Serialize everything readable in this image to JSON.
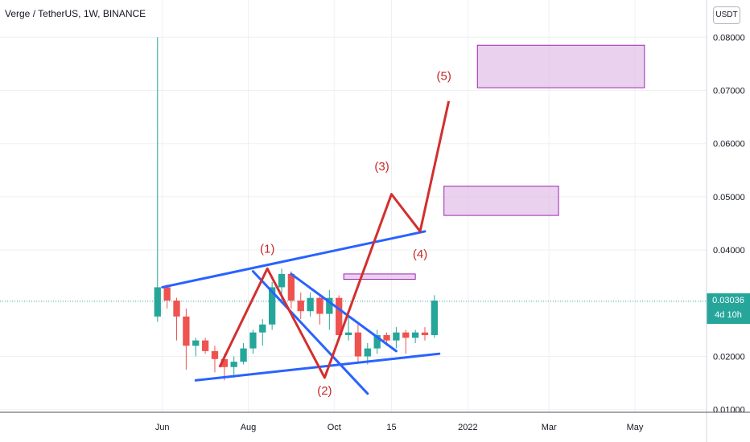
{
  "header": {
    "title": "Verge / TetherUS, 1W, BINANCE"
  },
  "price_axis": {
    "currency": "USDT"
  },
  "last_price": {
    "value": "0.03036",
    "countdown": "4d 10h"
  },
  "colors": {
    "up": "#26a69a",
    "down": "#ef5350",
    "trend": "#2962ff",
    "wave": "#d32f2f",
    "zone_fill": "#e1bee7",
    "zone_border": "#9c27b0"
  },
  "chart_data": {
    "type": "candlestick",
    "title": "Verge / TetherUS, 1W, BINANCE",
    "y_ticks": [
      "0.08000",
      "0.07000",
      "0.06000",
      "0.05000",
      "0.04000",
      "0.02000",
      "0.01000"
    ],
    "x_ticks": [
      {
        "label": "Jun",
        "week": 0.5
      },
      {
        "label": "Aug",
        "week": 9.5
      },
      {
        "label": "Oct",
        "week": 18.5
      },
      {
        "label": "15",
        "week": 24.5
      },
      {
        "label": "2022",
        "week": 32.5
      },
      {
        "label": "Mar",
        "week": 41
      },
      {
        "label": "May",
        "week": 50
      }
    ],
    "ylim": [
      0.0095,
      0.087
    ],
    "xlim": [
      -16.5,
      57.5
    ],
    "grid": true,
    "candles": [
      {
        "o": 0.0275,
        "h": 0.08,
        "l": 0.0265,
        "c": 0.033
      },
      {
        "o": 0.033,
        "h": 0.0335,
        "l": 0.029,
        "c": 0.0305
      },
      {
        "o": 0.0305,
        "h": 0.031,
        "l": 0.023,
        "c": 0.0275
      },
      {
        "o": 0.0275,
        "h": 0.029,
        "l": 0.0175,
        "c": 0.022
      },
      {
        "o": 0.022,
        "h": 0.0235,
        "l": 0.02,
        "c": 0.023
      },
      {
        "o": 0.023,
        "h": 0.0235,
        "l": 0.0205,
        "c": 0.021
      },
      {
        "o": 0.021,
        "h": 0.022,
        "l": 0.017,
        "c": 0.0195
      },
      {
        "o": 0.0195,
        "h": 0.0205,
        "l": 0.0155,
        "c": 0.018
      },
      {
        "o": 0.018,
        "h": 0.02,
        "l": 0.016,
        "c": 0.019
      },
      {
        "o": 0.019,
        "h": 0.0225,
        "l": 0.0185,
        "c": 0.0215
      },
      {
        "o": 0.0215,
        "h": 0.025,
        "l": 0.0205,
        "c": 0.0245
      },
      {
        "o": 0.0245,
        "h": 0.027,
        "l": 0.022,
        "c": 0.026
      },
      {
        "o": 0.026,
        "h": 0.034,
        "l": 0.025,
        "c": 0.033
      },
      {
        "o": 0.033,
        "h": 0.0365,
        "l": 0.03,
        "c": 0.0355
      },
      {
        "o": 0.0355,
        "h": 0.036,
        "l": 0.029,
        "c": 0.0305
      },
      {
        "o": 0.0305,
        "h": 0.032,
        "l": 0.027,
        "c": 0.0285
      },
      {
        "o": 0.0285,
        "h": 0.032,
        "l": 0.0275,
        "c": 0.031
      },
      {
        "o": 0.031,
        "h": 0.0315,
        "l": 0.026,
        "c": 0.028
      },
      {
        "o": 0.028,
        "h": 0.0325,
        "l": 0.025,
        "c": 0.031
      },
      {
        "o": 0.031,
        "h": 0.0315,
        "l": 0.023,
        "c": 0.024
      },
      {
        "o": 0.024,
        "h": 0.0275,
        "l": 0.023,
        "c": 0.0245
      },
      {
        "o": 0.0245,
        "h": 0.026,
        "l": 0.019,
        "c": 0.02
      },
      {
        "o": 0.02,
        "h": 0.0225,
        "l": 0.0185,
        "c": 0.0215
      },
      {
        "o": 0.0215,
        "h": 0.025,
        "l": 0.0205,
        "c": 0.024
      },
      {
        "o": 0.024,
        "h": 0.0245,
        "l": 0.022,
        "c": 0.023
      },
      {
        "o": 0.023,
        "h": 0.0255,
        "l": 0.0215,
        "c": 0.0245
      },
      {
        "o": 0.0245,
        "h": 0.025,
        "l": 0.0205,
        "c": 0.0235
      },
      {
        "o": 0.0235,
        "h": 0.025,
        "l": 0.0225,
        "c": 0.0245
      },
      {
        "o": 0.0245,
        "h": 0.0255,
        "l": 0.023,
        "c": 0.024
      },
      {
        "o": 0.024,
        "h": 0.0315,
        "l": 0.0235,
        "c": 0.0305
      }
    ],
    "candle_start_week": 0,
    "last_price": 0.03036,
    "trendlines": [
      {
        "x1": 0.5,
        "y1": 0.033,
        "x2": 28,
        "y2": 0.0435
      },
      {
        "x1": 4,
        "y1": 0.0155,
        "x2": 29.5,
        "y2": 0.0205
      },
      {
        "x1": 10,
        "y1": 0.036,
        "x2": 22,
        "y2": 0.013
      },
      {
        "x1": 14,
        "y1": 0.0355,
        "x2": 25,
        "y2": 0.021
      }
    ],
    "wave_path": [
      {
        "week": 6.5,
        "price": 0.018
      },
      {
        "week": 11.5,
        "price": 0.0365
      },
      {
        "week": 17.5,
        "price": 0.016
      },
      {
        "week": 24.5,
        "price": 0.0505
      },
      {
        "week": 27.5,
        "price": 0.0435
      },
      {
        "week": 30.5,
        "price": 0.068
      }
    ],
    "wave_labels": [
      {
        "text": "(1)",
        "week": 11.5,
        "price": 0.0395
      },
      {
        "text": "(2)",
        "week": 17.5,
        "price": 0.0128
      },
      {
        "text": "(3)",
        "week": 23.5,
        "price": 0.055
      },
      {
        "text": "(4)",
        "week": 27.5,
        "price": 0.0385
      },
      {
        "text": "(5)",
        "week": 30,
        "price": 0.072
      }
    ],
    "zones": [
      {
        "w1": 19.5,
        "w2": 27,
        "p1": 0.0345,
        "p2": 0.0355
      },
      {
        "w1": 30,
        "w2": 42,
        "p1": 0.0465,
        "p2": 0.052
      },
      {
        "w1": 33.5,
        "w2": 51,
        "p1": 0.0705,
        "p2": 0.0785
      }
    ]
  }
}
